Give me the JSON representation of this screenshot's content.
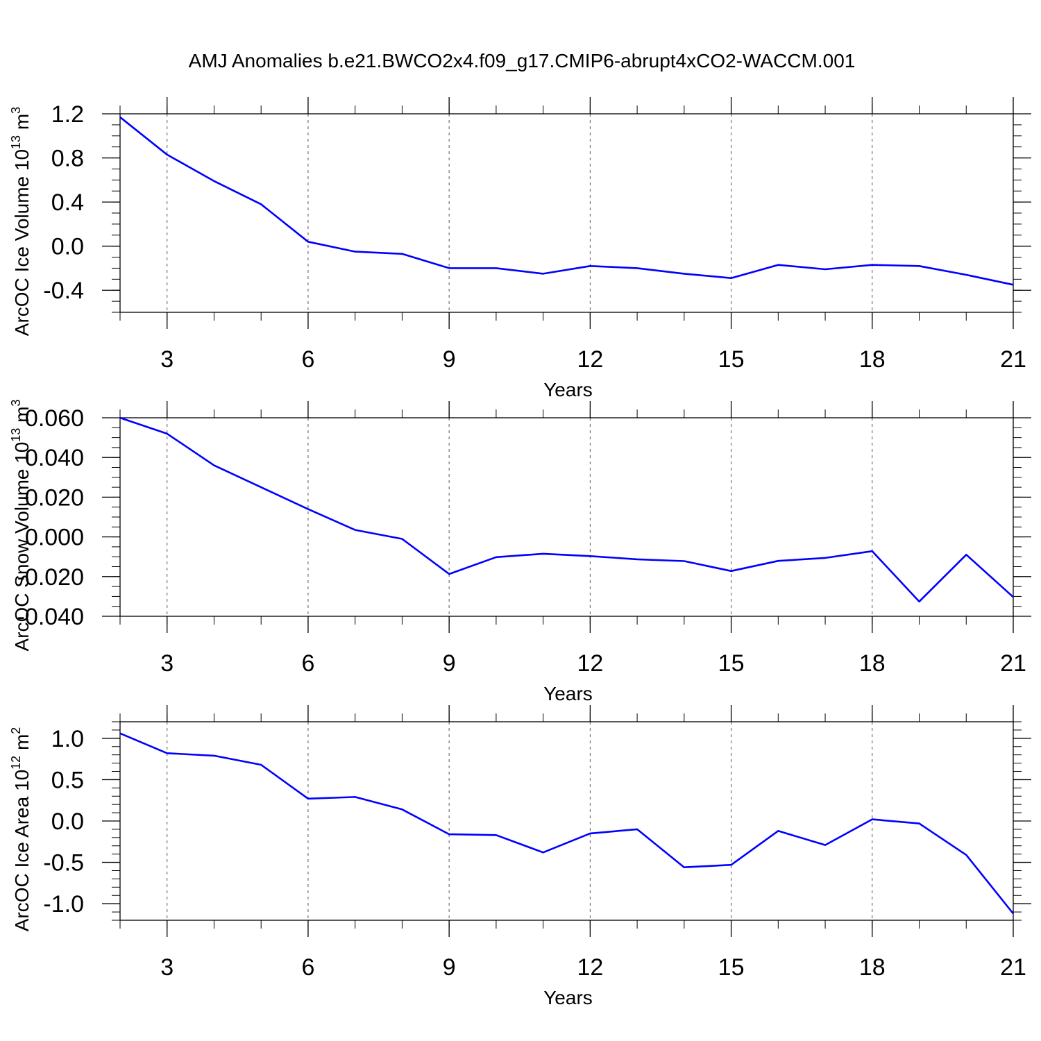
{
  "title": "AMJ Anomalies b.e21.BWCO2x4.f09_g17.CMIP6-abrupt4xCO2-WACCM.001",
  "colors": {
    "line": "#0000ff",
    "axis": "#000000",
    "grid": "#555555"
  },
  "chart_data": [
    {
      "type": "line",
      "ylabel": {
        "text": "ArcOC Ice Volume 10",
        "sup": "13",
        "unit": " m",
        "unit_sup": "3"
      },
      "xlabel": "Years",
      "xlim": [
        2,
        21
      ],
      "ylim": [
        -0.6,
        1.2
      ],
      "x_ticks": [
        3,
        6,
        9,
        12,
        15,
        18,
        21
      ],
      "y_ticks": [
        -0.4,
        0.0,
        0.4,
        0.8,
        1.2
      ],
      "y_tick_labels": [
        "-0.4",
        "0.0",
        "0.4",
        "0.8",
        "1.2"
      ],
      "y_minor_step": 0.1,
      "grid": "vertical dashed at major x ticks",
      "x": [
        2,
        3,
        4,
        5,
        6,
        7,
        8,
        9,
        10,
        11,
        12,
        13,
        14,
        15,
        16,
        17,
        18,
        19,
        20,
        21
      ],
      "values": [
        1.17,
        0.83,
        0.59,
        0.38,
        0.04,
        -0.05,
        -0.07,
        -0.2,
        -0.2,
        -0.25,
        -0.18,
        -0.2,
        -0.25,
        -0.29,
        -0.17,
        -0.21,
        -0.17,
        -0.18,
        -0.26,
        -0.35
      ]
    },
    {
      "type": "line",
      "ylabel": {
        "text": "ArcOC Snow Volume 10",
        "sup": "13",
        "unit": " m",
        "unit_sup": "3"
      },
      "xlabel": "Years",
      "xlim": [
        2,
        21
      ],
      "ylim": [
        -0.04,
        0.06
      ],
      "x_ticks": [
        3,
        6,
        9,
        12,
        15,
        18,
        21
      ],
      "y_ticks": [
        -0.04,
        -0.02,
        0.0,
        0.02,
        0.04,
        0.06
      ],
      "y_tick_labels": [
        "-0.040",
        "-0.020",
        "0.000",
        "0.020",
        "0.040",
        "0.060"
      ],
      "y_minor_step": 0.005,
      "grid": "vertical dashed at major x ticks",
      "x": [
        2,
        3,
        4,
        5,
        6,
        7,
        8,
        9,
        10,
        11,
        12,
        13,
        14,
        15,
        16,
        17,
        18,
        19,
        20,
        21
      ],
      "values": [
        0.06,
        0.052,
        0.036,
        0.025,
        0.014,
        0.0035,
        -0.001,
        -0.0187,
        -0.0102,
        -0.0085,
        -0.0097,
        -0.0113,
        -0.0122,
        -0.0172,
        -0.0121,
        -0.0106,
        -0.0072,
        -0.0326,
        -0.009,
        -0.0303
      ]
    },
    {
      "type": "line",
      "ylabel": {
        "text": "ArcOC Ice Area 10",
        "sup": "12",
        "unit": " m",
        "unit_sup": "2"
      },
      "xlabel": "Years",
      "xlim": [
        2,
        21
      ],
      "ylim": [
        -1.2,
        1.2
      ],
      "x_ticks": [
        3,
        6,
        9,
        12,
        15,
        18,
        21
      ],
      "y_ticks": [
        -1.0,
        -0.5,
        0.0,
        0.5,
        1.0
      ],
      "y_tick_labels": [
        "-1.0",
        "-0.5",
        "0.0",
        "0.5",
        "1.0"
      ],
      "y_minor_step": 0.1,
      "grid": "vertical dashed at major x ticks",
      "x": [
        2,
        3,
        4,
        5,
        6,
        7,
        8,
        9,
        10,
        11,
        12,
        13,
        14,
        15,
        16,
        17,
        18,
        19,
        20,
        21
      ],
      "values": [
        1.06,
        0.82,
        0.79,
        0.68,
        0.27,
        0.29,
        0.14,
        -0.16,
        -0.17,
        -0.38,
        -0.15,
        -0.1,
        -0.56,
        -0.53,
        -0.12,
        -0.29,
        0.02,
        -0.03,
        -0.41,
        -1.12
      ]
    }
  ]
}
